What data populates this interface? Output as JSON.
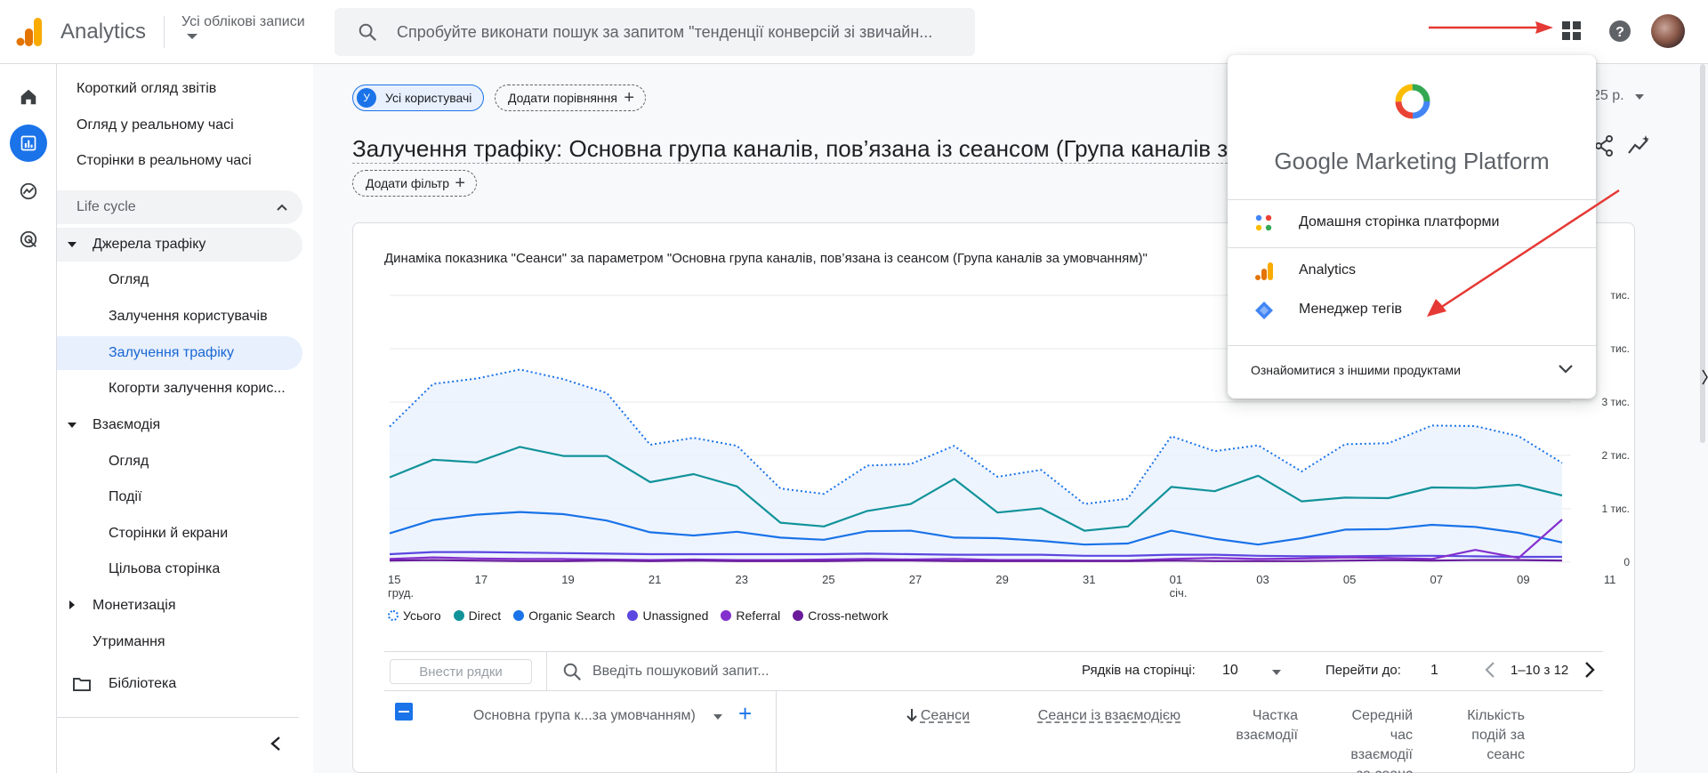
{
  "header": {
    "app_title": "Analytics",
    "account_label": "Усі облікові записи",
    "search_placeholder": "Спробуйте виконати пошук за запитом \"тенденції конверсій зі звичайн..."
  },
  "nav": {
    "items": [
      {
        "label": "Короткий огляд звітів"
      },
      {
        "label": "Огляд у реальному часі"
      },
      {
        "label": "Сторінки в реальному часі"
      },
      {
        "label": "Life cycle"
      },
      {
        "label": "Джерела трафіку"
      },
      {
        "label": "Огляд"
      },
      {
        "label": "Залучення користувачів"
      },
      {
        "label": "Залучення трафіку"
      },
      {
        "label": "Когорти залучення корис..."
      },
      {
        "label": "Взаємодія"
      },
      {
        "label": "Огляд"
      },
      {
        "label": "Події"
      },
      {
        "label": "Сторінки й екрани"
      },
      {
        "label": "Цільова сторінка"
      },
      {
        "label": "Монетизація"
      },
      {
        "label": "Утримання"
      },
      {
        "label": "Бібліотека"
      }
    ]
  },
  "main": {
    "chip_users_letter": "У",
    "chip_users": "Усі користувачі",
    "chip_compare": "Додати порівняння",
    "chip_filter": "Додати фільтр",
    "title": "Залучення трафіку: Основна група каналів, пов’язана із сеансом (Група каналів за умо",
    "date_fragment": "25 р.",
    "chart_title": "Динаміка показника \"Сеанси\" за параметром \"Основна група каналів, пов’язана із сеансом (Група каналів за умовчанням)\""
  },
  "chart_data": {
    "type": "line",
    "x": [
      "15 груд.",
      "16",
      "17",
      "18",
      "19",
      "20",
      "21",
      "22",
      "23",
      "24",
      "25",
      "26",
      "27",
      "28",
      "29",
      "30",
      "31",
      "01 січ.",
      "02",
      "03",
      "04",
      "05",
      "06",
      "07",
      "08",
      "09",
      "10",
      "11"
    ],
    "x_tick_labels": [
      {
        "top": "15",
        "bottom": "груд."
      },
      {
        "top": "17",
        "bottom": ""
      },
      {
        "top": "19",
        "bottom": ""
      },
      {
        "top": "21",
        "bottom": ""
      },
      {
        "top": "23",
        "bottom": ""
      },
      {
        "top": "25",
        "bottom": ""
      },
      {
        "top": "27",
        "bottom": ""
      },
      {
        "top": "29",
        "bottom": ""
      },
      {
        "top": "31",
        "bottom": ""
      },
      {
        "top": "01",
        "bottom": "січ."
      },
      {
        "top": "03",
        "bottom": ""
      },
      {
        "top": "05",
        "bottom": ""
      },
      {
        "top": "07",
        "bottom": ""
      },
      {
        "top": "09",
        "bottom": ""
      },
      {
        "top": "11",
        "bottom": ""
      }
    ],
    "y_ticks": [
      {
        "value": 0,
        "label": "0"
      },
      {
        "value": 1000,
        "label": "1 тис."
      },
      {
        "value": 2000,
        "label": "2 тис."
      },
      {
        "value": 3000,
        "label": "3 тис."
      },
      {
        "value": 4000,
        "label": "тис."
      },
      {
        "value": 5000,
        "label": "тис."
      }
    ],
    "ylim": [
      0,
      5000
    ],
    "series": [
      {
        "name": "Усього",
        "color": "#1a73e8",
        "style": "dotted",
        "values": [
          2540,
          3340,
          3440,
          3610,
          3430,
          3170,
          2200,
          2330,
          2180,
          1380,
          1280,
          1810,
          1840,
          2180,
          1600,
          1730,
          1090,
          1190,
          2360,
          2080,
          2190,
          1700,
          2210,
          2230,
          2560,
          2550,
          2360,
          1860
        ]
      },
      {
        "name": "Direct",
        "color": "#12939a",
        "style": "solid",
        "values": [
          1590,
          1920,
          1870,
          2160,
          1990,
          1990,
          1500,
          1650,
          1420,
          740,
          670,
          960,
          1090,
          1560,
          930,
          1010,
          590,
          670,
          1410,
          1330,
          1620,
          1140,
          1210,
          1200,
          1400,
          1390,
          1450,
          1250
        ]
      },
      {
        "name": "Organic Search",
        "color": "#1a73e8",
        "style": "solid",
        "values": [
          540,
          790,
          890,
          940,
          900,
          780,
          560,
          500,
          570,
          460,
          420,
          580,
          590,
          460,
          450,
          400,
          330,
          350,
          590,
          440,
          330,
          450,
          610,
          620,
          700,
          660,
          550,
          370
        ]
      },
      {
        "name": "Unassigned",
        "color": "#5b47e0",
        "style": "solid",
        "values": [
          150,
          190,
          190,
          180,
          170,
          160,
          150,
          150,
          150,
          150,
          150,
          160,
          150,
          140,
          140,
          140,
          120,
          120,
          140,
          140,
          120,
          110,
          110,
          120,
          120,
          110,
          100,
          100
        ]
      },
      {
        "name": "Referral",
        "color": "#8430ce",
        "style": "solid",
        "values": [
          60,
          90,
          70,
          60,
          60,
          50,
          40,
          50,
          40,
          40,
          50,
          60,
          50,
          60,
          40,
          40,
          30,
          30,
          60,
          80,
          60,
          70,
          90,
          80,
          60,
          230,
          80,
          800
        ]
      },
      {
        "name": "Cross-network",
        "color": "#6a1b9a",
        "style": "solid",
        "values": [
          30,
          40,
          30,
          20,
          20,
          30,
          20,
          30,
          20,
          20,
          20,
          30,
          30,
          20,
          20,
          20,
          20,
          20,
          30,
          20,
          20,
          20,
          30,
          40,
          30,
          40,
          40,
          30
        ]
      }
    ]
  },
  "table": {
    "add_rows": "Внести рядки",
    "search_placeholder": "Введіть пошуковий запит...",
    "rows_per_page_label": "Рядків на сторінці:",
    "rows_per_page_value": "10",
    "goto_label": "Перейти до:",
    "goto_value": "1",
    "range": "1–10 з 12",
    "dimension_header": "Основна група к...за умовчанням)",
    "columns": [
      {
        "lines": [
          "Сеанси"
        ]
      },
      {
        "lines": [
          "Сеанси із взаємодією"
        ]
      },
      {
        "lines": [
          "Частка",
          "взаємодії"
        ]
      },
      {
        "lines": [
          "Середній",
          "час",
          "взаємодії",
          "за сеанс"
        ]
      },
      {
        "lines": [
          "Кількість",
          "подій за",
          "сеанс"
        ]
      }
    ]
  },
  "popup": {
    "brand_google": "Google",
    "brand_rest": "Marketing Platform",
    "items": [
      {
        "label": "Домашня сторінка платформи"
      },
      {
        "label": "Analytics"
      },
      {
        "label": "Менеджер тегів"
      }
    ],
    "explore": "Ознайомитися з іншими продуктами"
  }
}
